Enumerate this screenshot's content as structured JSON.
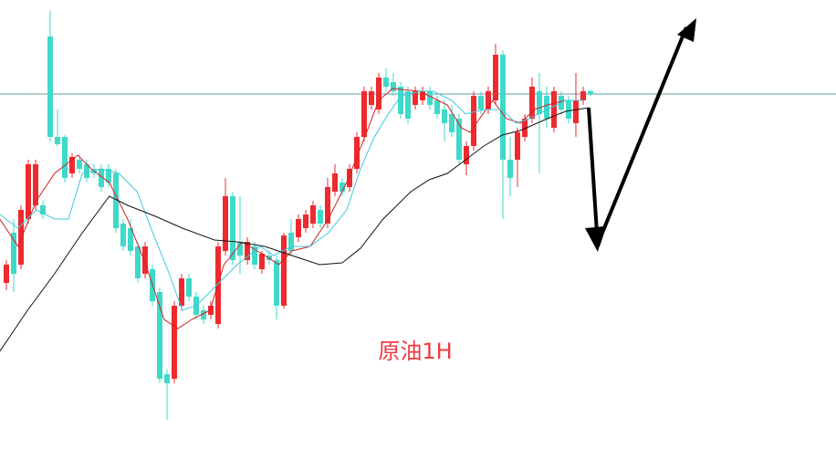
{
  "chart_data": {
    "type": "candlestick",
    "annotation": "原油1H",
    "up_color": "#ee2a2f",
    "down_color": "#3fd9c9",
    "xlim": [
      -0.875,
      113.625
    ],
    "ylim": [
      0,
      500
    ],
    "hline": {
      "value": 397,
      "color": "#5f9d9d"
    },
    "open": [
      190,
      245,
      210,
      260,
      275,
      275,
      460,
      350,
      350,
      310,
      325,
      320,
      315,
      315,
      315,
      310,
      255,
      250,
      230,
      200,
      205,
      180,
      90,
      85,
      165,
      195,
      175,
      160,
      155,
      145,
      225,
      285,
      235,
      215,
      230,
      205,
      220,
      215,
      165,
      245,
      240,
      250,
      255,
      270,
      255,
      290,
      300,
      295,
      315,
      350,
      385,
      380,
      415,
      410,
      405,
      400,
      385,
      390,
      400,
      390,
      380,
      375,
      370,
      320,
      340,
      395,
      380,
      390,
      440,
      325,
      325,
      350,
      370,
      400,
      395,
      360,
      395,
      390,
      365,
      390,
      400
    ],
    "high": [
      215,
      260,
      275,
      325,
      325,
      280,
      488,
      380,
      352,
      332,
      330,
      325,
      320,
      320,
      320,
      315,
      260,
      260,
      235,
      235,
      210,
      185,
      95,
      170,
      200,
      200,
      180,
      165,
      170,
      235,
      305,
      290,
      285,
      240,
      235,
      225,
      225,
      220,
      245,
      260,
      265,
      270,
      280,
      275,
      305,
      320,
      305,
      320,
      355,
      405,
      405,
      420,
      425,
      420,
      410,
      405,
      405,
      405,
      405,
      395,
      390,
      385,
      375,
      345,
      400,
      400,
      405,
      452,
      445,
      350,
      360,
      375,
      415,
      420,
      405,
      405,
      400,
      395,
      420,
      405,
      402
    ],
    "low": [
      182,
      180,
      205,
      255,
      270,
      260,
      345,
      340,
      300,
      305,
      310,
      300,
      305,
      290,
      295,
      245,
      225,
      220,
      190,
      195,
      165,
      80,
      40,
      80,
      160,
      170,
      150,
      145,
      150,
      140,
      220,
      210,
      200,
      210,
      205,
      200,
      210,
      150,
      162,
      220,
      235,
      245,
      250,
      250,
      250,
      285,
      285,
      290,
      310,
      345,
      380,
      375,
      400,
      395,
      370,
      365,
      380,
      385,
      380,
      370,
      345,
      350,
      320,
      308,
      335,
      375,
      375,
      385,
      260,
      285,
      295,
      345,
      365,
      310,
      360,
      355,
      375,
      365,
      350,
      385,
      395
    ],
    "close": [
      210,
      200,
      270,
      320,
      320,
      265,
      350,
      342,
      305,
      328,
      315,
      305,
      310,
      295,
      300,
      250,
      230,
      225,
      195,
      230,
      170,
      85,
      80,
      165,
      195,
      175,
      155,
      150,
      165,
      230,
      285,
      215,
      220,
      235,
      210,
      222,
      215,
      165,
      242,
      225,
      260,
      265,
      275,
      255,
      295,
      310,
      290,
      315,
      350,
      400,
      400,
      415,
      405,
      400,
      375,
      370,
      400,
      400,
      385,
      375,
      365,
      355,
      325,
      340,
      395,
      380,
      400,
      440,
      325,
      305,
      355,
      370,
      405,
      375,
      370,
      400,
      380,
      370,
      390,
      400,
      397
    ],
    "series": [
      {
        "color": "#d42020",
        "x": [
          -0.9,
          1.6,
          4.1,
          6.6,
          9.8,
          11.6,
          14.1,
          16.6,
          19.1,
          21.6,
          23.5,
          25.4,
          27.9,
          29.8,
          32.3,
          35.4,
          37.3,
          39.1,
          41.6,
          44.1,
          46.6,
          49.1,
          51,
          52.9,
          56.6,
          60.4,
          62.3,
          63.5,
          64.8,
          66.6,
          68.5,
          70.4,
          72.3,
          74.1,
          76.6,
          79.1
        ],
        "values": [
          260,
          230,
          280,
          310,
          330,
          315,
          300,
          260,
          210,
          150,
          140,
          150,
          160,
          210,
          235,
          220,
          210,
          225,
          230,
          260,
          300,
          350,
          390,
          403,
          400,
          385,
          360,
          355,
          370,
          390,
          370,
          365,
          380,
          385,
          390,
          390
        ]
      },
      {
        "color": "#3cc9dc",
        "x": [
          -0.9,
          1.6,
          4.1,
          6.6,
          8.5,
          10.4,
          12.9,
          15.4,
          17.9,
          19.8,
          22.3,
          24.1,
          26,
          29.1,
          31.6,
          34.8,
          36.6,
          39.1,
          41.6,
          44.1,
          46.6,
          48.5,
          50.4,
          52.3,
          54.1,
          56.6,
          58.5,
          61,
          62.9,
          65.4,
          67.9,
          69.8,
          71.6,
          74.1,
          76.6,
          79.1
        ],
        "values": [
          265,
          250,
          270,
          260,
          260,
          310,
          315,
          310,
          290,
          250,
          200,
          160,
          165,
          190,
          210,
          230,
          220,
          230,
          230,
          245,
          270,
          315,
          350,
          375,
          395,
          400,
          400,
          390,
          375,
          380,
          380,
          365,
          370,
          380,
          390,
          390
        ]
      },
      {
        "color": "#111111",
        "x": [
          -0.9,
          2.9,
          6.6,
          10.4,
          14.1,
          16.6,
          20.4,
          24.1,
          28.5,
          31.6,
          35.4,
          39.1,
          42.9,
          46,
          48.5,
          51.6,
          55.4,
          57.9,
          60.4,
          62.9,
          65.4,
          67.9,
          70.4,
          74.1,
          76.6,
          79.75
        ],
        "values": [
          115,
          160,
          200,
          245,
          285,
          275,
          263,
          250,
          237,
          235,
          230,
          220,
          210,
          212,
          228,
          260,
          290,
          303,
          310,
          325,
          340,
          352,
          357,
          370,
          378,
          382
        ]
      }
    ]
  }
}
